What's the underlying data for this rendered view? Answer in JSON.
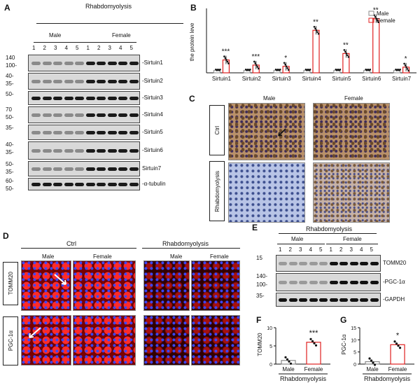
{
  "panels": {
    "A": "A",
    "B": "B",
    "C": "C",
    "D": "D",
    "E": "E",
    "F": "F",
    "G": "G"
  },
  "panelA": {
    "group": "Rhabdomyolysis",
    "sexes": [
      "Male",
      "Female"
    ],
    "lanes_male": [
      "1",
      "2",
      "3",
      "4",
      "5"
    ],
    "lanes_female": [
      "1",
      "2",
      "3",
      "4",
      "5"
    ],
    "rows": [
      {
        "label": "-Sirtuin1",
        "mw": [
          "140",
          "100-"
        ]
      },
      {
        "label": "-Sirtuin2",
        "mw": [
          "40-",
          "35-"
        ]
      },
      {
        "label": "-Sirtuin3",
        "mw": [
          "50-",
          ""
        ]
      },
      {
        "label": "-Sirtuin4",
        "mw": [
          "70",
          "50-"
        ]
      },
      {
        "label": "-Sirtuin5",
        "mw": [
          "35-",
          ""
        ]
      },
      {
        "label": "-Sirtuin6",
        "mw": [
          "40-",
          "35-"
        ]
      },
      {
        "label": "Sirtuin7",
        "mw": [
          "50-",
          "35-"
        ]
      },
      {
        "label": "-α-tubulin",
        "mw": [
          "60-",
          "50-"
        ]
      }
    ]
  },
  "panelB": {
    "ylabel": "the protein leve",
    "legend": [
      "Male",
      "Female"
    ],
    "colors": {
      "male": "#8a8a8a",
      "female": "#e02020"
    }
  },
  "panelC": {
    "sexes": [
      "Male",
      "Female"
    ],
    "rows": [
      "Ctrl",
      "Rhabdomyolysis"
    ]
  },
  "panelD": {
    "groups": [
      "Ctrl",
      "Rhabdomyolysis"
    ],
    "sexes": [
      "Male",
      "Female",
      "Male",
      "Female"
    ],
    "rows": [
      "TOMM20",
      "PGC-1α"
    ]
  },
  "panelE": {
    "group": "Rhabdomyolysis",
    "sexes": [
      "Male",
      "Female"
    ],
    "lanes": [
      "1",
      "2",
      "3",
      "4",
      "5",
      "1",
      "2",
      "3",
      "4",
      "5"
    ],
    "rows": [
      {
        "label": "TOMM20",
        "mw": [
          "15",
          ""
        ]
      },
      {
        "label": "-PGC-1α",
        "mw": [
          "140-",
          "100-"
        ]
      },
      {
        "label": "-GAPDH",
        "mw": [
          "35-",
          ""
        ]
      }
    ]
  },
  "chart_data": [
    {
      "type": "bar",
      "panel": "B",
      "categories": [
        "Sirtuin1",
        "Sirtuin2",
        "Sirtuin3",
        "Sirtuin4",
        "Sirtuin5",
        "Sirtuin6",
        "Sirtuin7"
      ],
      "series": [
        {
          "name": "Male",
          "values": [
            1,
            1,
            1,
            1,
            1,
            1,
            1
          ]
        },
        {
          "name": "Female",
          "values": [
            5,
            3,
            2.5,
            16.5,
            7.5,
            21,
            2.2
          ]
        }
      ],
      "annotations": [
        "***",
        "***",
        "*",
        "**",
        "**",
        "**",
        "*"
      ],
      "ylabel": "the protein leve",
      "ylim": [
        0,
        25
      ],
      "legend": "top-right"
    },
    {
      "type": "bar",
      "panel": "F",
      "categories": [
        "Male",
        "Female"
      ],
      "values": [
        1,
        6
      ],
      "ylabel": "TOMM20",
      "xlabel": "Rhabdomyolysis",
      "yticks": [
        "0",
        "5",
        "10"
      ],
      "ylim": [
        0,
        10
      ],
      "annotation": "***"
    },
    {
      "type": "bar",
      "panel": "G",
      "categories": [
        "Male",
        "Female"
      ],
      "values": [
        1,
        8
      ],
      "ylabel": "PGC-1α",
      "xlabel": "Rhabdomyolysis",
      "yticks": [
        "0",
        "5",
        "10",
        "15"
      ],
      "ylim": [
        0,
        15
      ],
      "annotation": "*"
    }
  ]
}
